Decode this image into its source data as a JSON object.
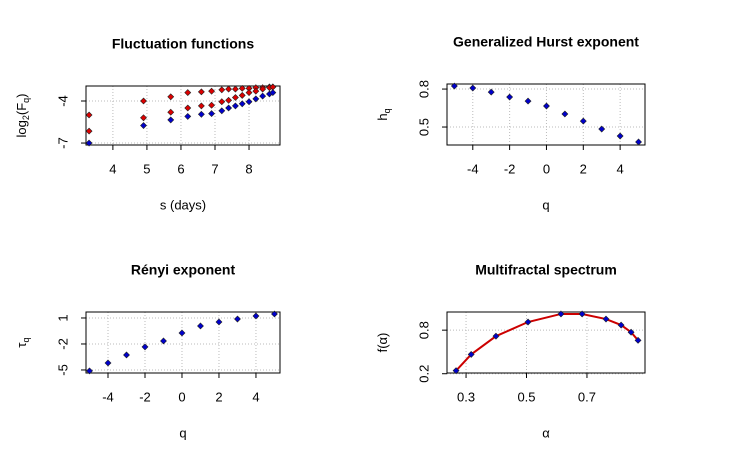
{
  "chart_data": [
    {
      "type": "scatter",
      "title": "Fluctuation functions",
      "xlabel": "s (days)",
      "ylabel": [
        "log",
        "2",
        "(F",
        "q",
        ")"
      ],
      "xlim": [
        3.21,
        8.91
      ],
      "ylim": [
        -7.14,
        -2.93
      ],
      "xticks": [
        4,
        5,
        6,
        7,
        8
      ],
      "yticks": [
        -7,
        -4
      ],
      "grid": true,
      "series": [
        {
          "color": "#dd0000",
          "x": [
            3.3,
            4.9,
            5.7,
            6.2,
            6.6,
            6.9,
            7.2,
            7.4,
            7.6,
            7.8,
            8.0,
            8.2,
            8.4,
            8.6,
            8.7
          ],
          "values": [
            -5.0,
            -4.0,
            -3.7,
            -3.4,
            -3.35,
            -3.3,
            -3.2,
            -3.15,
            -3.15,
            -3.1,
            -3.1,
            -3.05,
            -3.05,
            -3.0,
            -3.0
          ]
        },
        {
          "color": "#dd0000",
          "x": [
            3.3,
            4.9,
            5.7,
            6.2,
            6.6,
            6.9,
            7.2,
            7.4,
            7.6,
            7.8,
            8.0,
            8.2,
            8.4,
            8.6,
            8.7
          ],
          "values": [
            -6.15,
            -5.2,
            -4.8,
            -4.5,
            -4.35,
            -4.3,
            -4.05,
            -3.95,
            -3.75,
            -3.6,
            -3.4,
            -3.3,
            -3.15,
            -3.05,
            -3.0
          ]
        },
        {
          "color": "#0000cc",
          "x": [
            3.3,
            4.9,
            5.7,
            6.2,
            6.6,
            6.9,
            7.2,
            7.4,
            7.6,
            7.8,
            8.0,
            8.2,
            8.4,
            8.6,
            8.7
          ],
          "values": [
            -7.0,
            -5.75,
            -5.35,
            -5.1,
            -4.95,
            -4.9,
            -4.7,
            -4.5,
            -4.35,
            -4.2,
            -4.05,
            -3.85,
            -3.65,
            -3.5,
            -3.4
          ]
        }
      ]
    },
    {
      "type": "scatter",
      "title": "Generalized Hurst exponent",
      "xlabel": "q",
      "ylabel": [
        "h",
        "q"
      ],
      "xlim": [
        -5.4,
        5.35
      ],
      "ylim": [
        0.358,
        0.84
      ],
      "xticks": [
        -4,
        -2,
        0,
        2,
        4
      ],
      "yticks": [
        0.5,
        0.8
      ],
      "grid": true,
      "series": [
        {
          "color": "#0000cc",
          "x": [
            -5,
            -4,
            -3,
            -2,
            -1,
            0,
            1,
            2,
            3,
            4,
            5
          ],
          "values": [
            0.824,
            0.808,
            0.776,
            0.737,
            0.705,
            0.666,
            0.603,
            0.547,
            0.484,
            0.429,
            0.382
          ]
        }
      ]
    },
    {
      "type": "scatter",
      "title": "Rényi exponent",
      "xlabel": "q",
      "ylabel": [
        "τ",
        "q"
      ],
      "xlim": [
        -5.19,
        5.3
      ],
      "ylim": [
        -5.35,
        1.69
      ],
      "xticks": [
        -4,
        -2,
        0,
        2,
        4
      ],
      "yticks": [
        -5,
        -2,
        1
      ],
      "grid": true,
      "series": [
        {
          "color": "#0000cc",
          "x": [
            -5,
            -4,
            -3,
            -2,
            -1,
            0,
            1,
            2,
            3,
            4,
            5
          ],
          "values": [
            -5.11,
            -4.19,
            -3.27,
            -2.34,
            -1.65,
            -0.73,
            0.08,
            0.54,
            0.88,
            1.23,
            1.46
          ]
        }
      ]
    },
    {
      "type": "scatter",
      "title": "Multifractal spectrum",
      "xlabel": "α",
      "ylabel": [
        "f(α)"
      ],
      "xlim": [
        0.237,
        0.892
      ],
      "ylim": [
        0.21,
        1.05
      ],
      "xticks": [
        0.3,
        0.5,
        0.7
      ],
      "yticks": [
        0.2,
        0.8
      ],
      "grid": true,
      "series": [
        {
          "color": "#0000cc",
          "line_color": "#cc0000",
          "x": [
            0.267,
            0.317,
            0.399,
            0.505,
            0.614,
            0.684,
            0.763,
            0.813,
            0.846,
            0.869
          ],
          "values": [
            0.242,
            0.466,
            0.717,
            0.912,
            1.023,
            1.023,
            0.953,
            0.87,
            0.772,
            0.66
          ]
        }
      ]
    }
  ]
}
